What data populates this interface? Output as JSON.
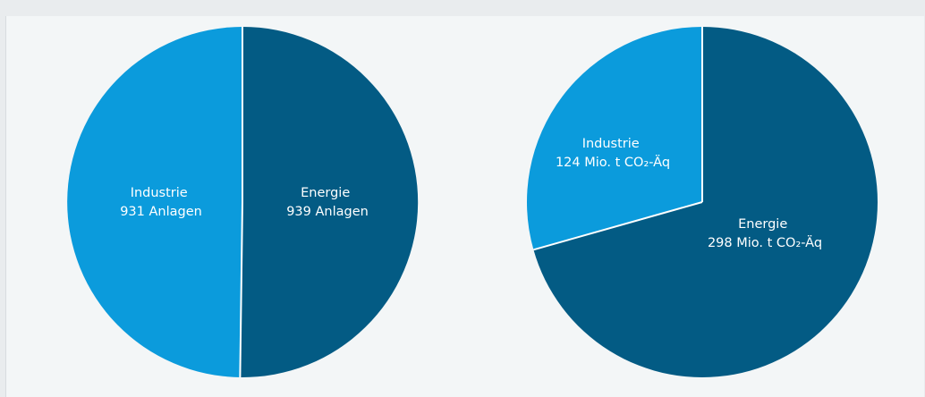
{
  "colors": {
    "industrie": "#0b9bdc",
    "energie": "#035b84",
    "divider": "#ffffff"
  },
  "chart_data": [
    {
      "type": "pie",
      "slices": [
        {
          "name": "Industrie",
          "value": 931,
          "label_line1": "Industrie",
          "label_line2": "931 Anlagen",
          "color": "#0b9bdc"
        },
        {
          "name": "Energie",
          "value": 939,
          "label_line1": "Energie",
          "label_line2": "939 Anlagen",
          "color": "#035b84"
        }
      ]
    },
    {
      "type": "pie",
      "slices": [
        {
          "name": "Industrie",
          "value": 124,
          "label_line1": "Industrie",
          "label_line2": "124 Mio. t CO₂-Äq",
          "color": "#0b9bdc"
        },
        {
          "name": "Energie",
          "value": 298,
          "label_line1": "Energie",
          "label_line2": "298 Mio. t CO₂-Äq",
          "color": "#035b84"
        }
      ]
    }
  ]
}
